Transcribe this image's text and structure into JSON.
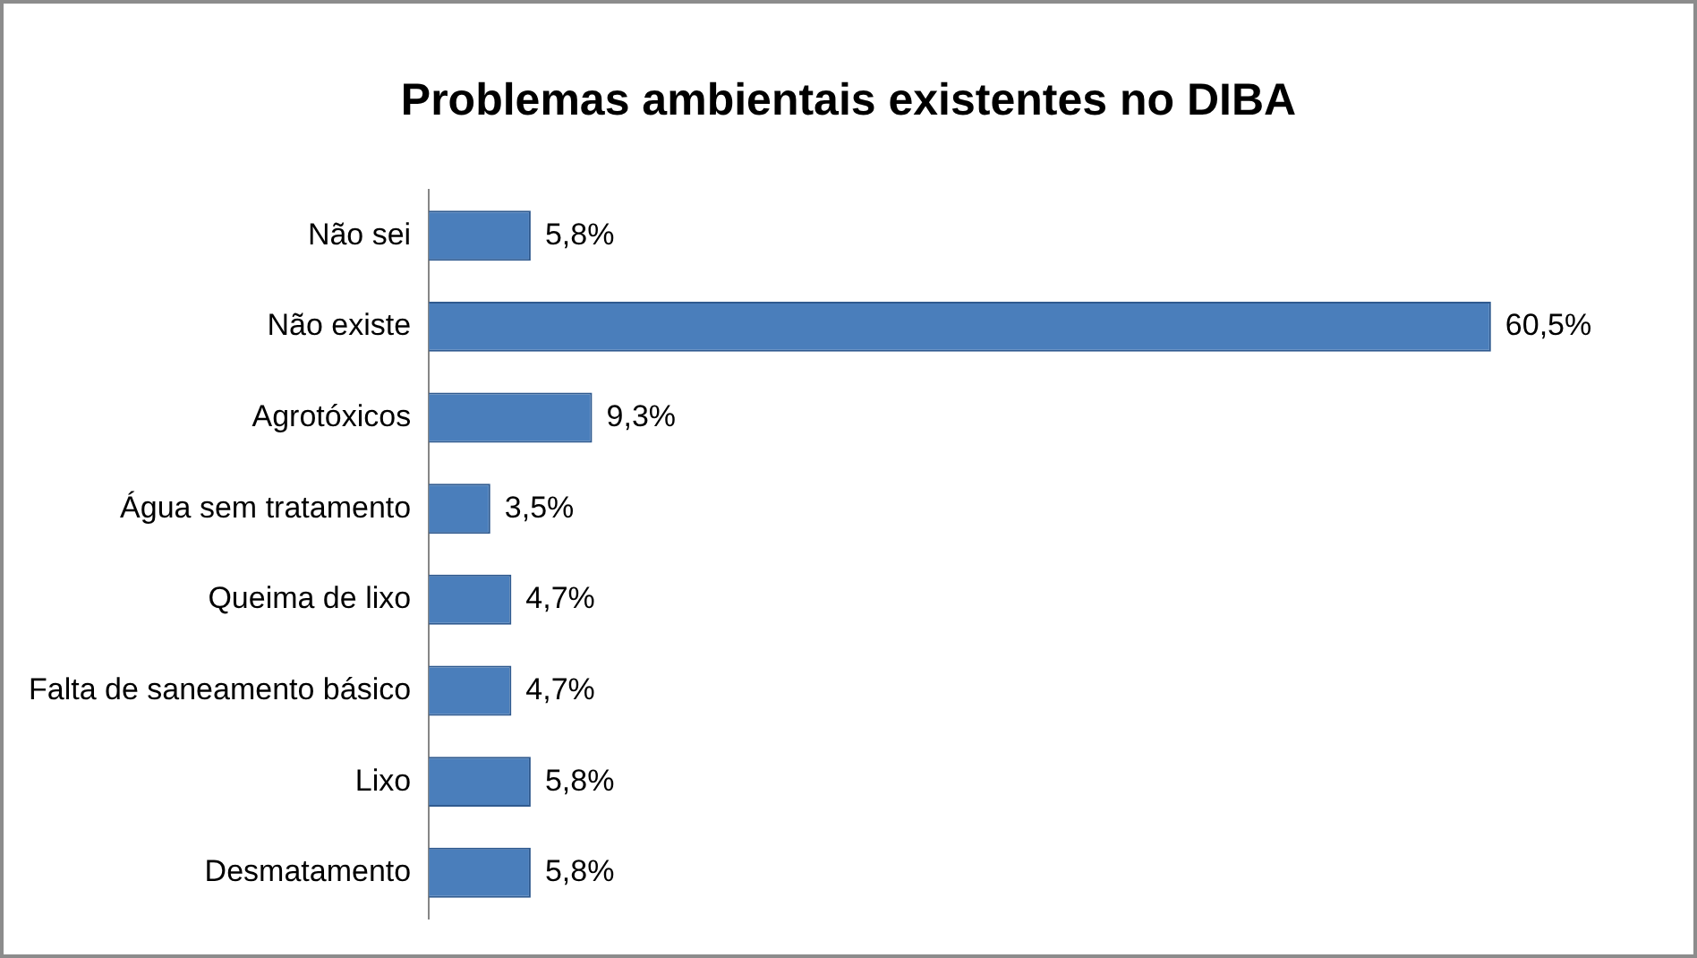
{
  "chart_data": {
    "type": "bar",
    "orientation": "horizontal",
    "title": "Problemas ambientais existentes no DIBA",
    "categories": [
      "Não sei",
      "Não existe",
      "Agrotóxicos",
      "Água sem tratamento",
      "Queima de lixo",
      "Falta de saneamento básico",
      "Lixo",
      "Desmatamento"
    ],
    "values": [
      5.8,
      60.5,
      9.3,
      3.5,
      4.7,
      4.7,
      5.8,
      5.8
    ],
    "value_labels": [
      "5,8%",
      "60,5%",
      "9,3%",
      "3,5%",
      "4,7%",
      "4,7%",
      "5,8%",
      "5,8%"
    ],
    "color": "#4a7ebb",
    "tick_labels": "y"
  }
}
